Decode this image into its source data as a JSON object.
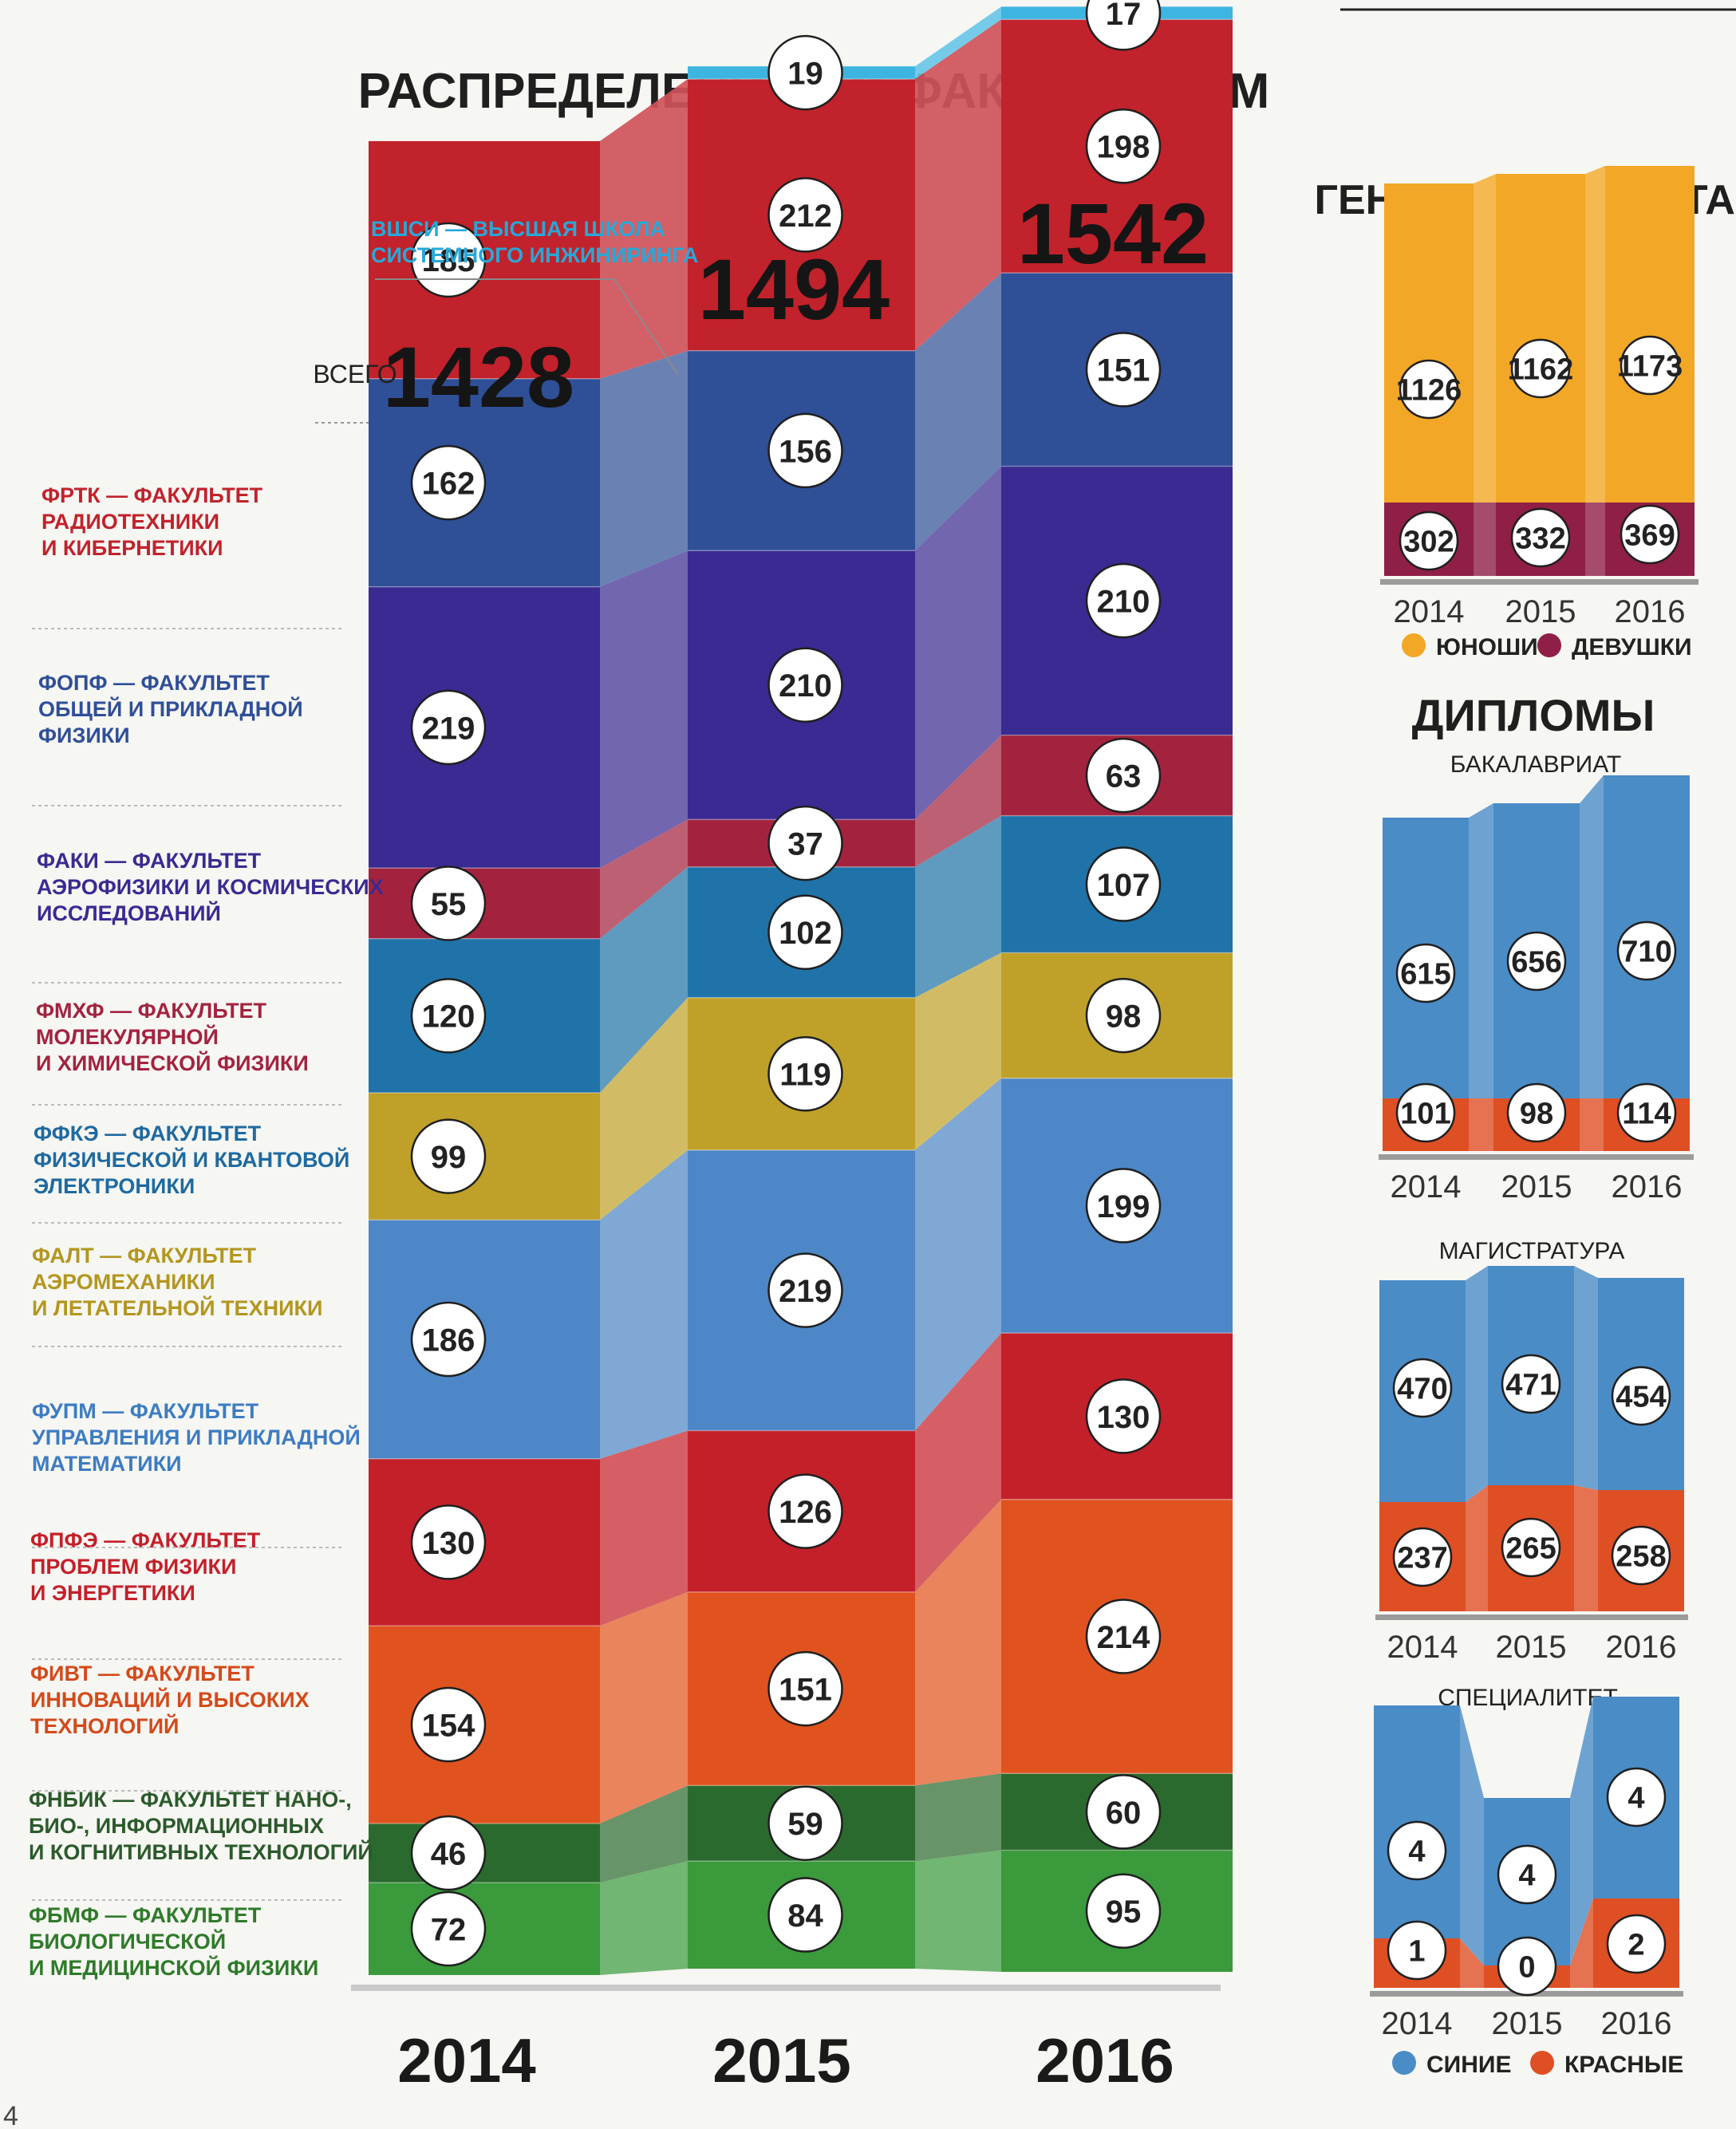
{
  "chart_data": [
    {
      "id": "faculties",
      "type": "stacked_bar",
      "title": "РАСПРЕДЕЛЕНИЕ ПО ФАКУЛЬТЕТАМ",
      "total_label": "ВСЕГО",
      "categories": [
        "2014",
        "2015",
        "2016"
      ],
      "totals": [
        1428,
        1494,
        1542
      ],
      "series": [
        {
          "short": "ФБМФ",
          "name": "ФБМФ — ФАКУЛЬТЕТ БИОЛОГИЧЕСКОЙ И МЕДИЦИНСКОЙ ФИЗИКИ",
          "lines": [
            "ФБМФ — ФАКУЛЬТЕТ",
            "БИОЛОГИЧЕСКОЙ",
            "И МЕДИЦИНСКОЙ ФИЗИКИ"
          ],
          "color": "#3a9a3c",
          "label_color": "#2f7a2a",
          "values": [
            72,
            84,
            95
          ]
        },
        {
          "short": "ФНБИК",
          "name": "ФНБИК — ФАКУЛЬТЕТ НАНО-, БИО-, ИНФОРМАЦИОННЫХ И КОГНИТИВНЫХ ТЕХНОЛОГИЙ",
          "lines": [
            "ФНБИК — ФАКУЛЬТЕТ НАНО-,",
            "БИО-, ИНФОРМАЦИОННЫХ",
            "И КОГНИТИВНЫХ ТЕХНОЛОГИЙ"
          ],
          "color": "#2b6a2e",
          "label_color": "#2b5a2b",
          "values": [
            46,
            59,
            60
          ]
        },
        {
          "short": "ФИВТ",
          "name": "ФИВТ — ФАКУЛЬТЕТ ИННОВАЦИЙ И ВЫСОКИХ ТЕХНОЛОГИЙ",
          "lines": [
            "ФИВТ — ФАКУЛЬТЕТ",
            "ИННОВАЦИЙ И ВЫСОКИХ",
            "ТЕХНОЛОГИЙ"
          ],
          "color": "#e0531f",
          "label_color": "#d44a1a",
          "values": [
            154,
            151,
            214
          ]
        },
        {
          "short": "ФПФЭ",
          "name": "ФПФЭ — ФАКУЛЬТЕТ ПРОБЛЕМ ФИЗИКИ И ЭНЕРГЕТИКИ",
          "lines": [
            "ФПФЭ — ФАКУЛЬТЕТ",
            "ПРОБЛЕМ ФИЗИКИ",
            "И ЭНЕРГЕТИКИ"
          ],
          "color": "#c4202a",
          "label_color": "#c4202a",
          "values": [
            130,
            126,
            130
          ]
        },
        {
          "short": "ФУПМ",
          "name": "ФУПМ — ФАКУЛЬТЕТ УПРАВЛЕНИЯ И ПРИКЛАДНОЙ МАТЕМАТИКИ",
          "lines": [
            "ФУПМ — ФАКУЛЬТЕТ",
            "УПРАВЛЕНИЯ И ПРИКЛАДНОЙ",
            "МАТЕМАТИКИ"
          ],
          "color": "#4d87c7",
          "label_color": "#3d7cc2",
          "values": [
            186,
            219,
            199
          ]
        },
        {
          "short": "ФАЛТ",
          "name": "ФАЛТ — ФАКУЛЬТЕТ АЭРОМЕХАНИКИ И ЛЕТАТЕЛЬНОЙ ТЕХНИКИ",
          "lines": [
            "ФАЛТ — ФАКУЛЬТЕТ",
            "АЭРОМЕХАНИКИ",
            "И ЛЕТАТЕЛЬНОЙ ТЕХНИКИ"
          ],
          "color": "#bfa12a",
          "label_color": "#b3961f",
          "values": [
            99,
            119,
            98
          ]
        },
        {
          "short": "ФФКЭ",
          "name": "ФФКЭ — ФАКУЛЬТЕТ ФИЗИЧЕСКОЙ И КВАНТОВОЙ ЭЛЕКТРОНИКИ",
          "lines": [
            "ФФКЭ —  ФАКУЛЬТЕТ",
            "ФИЗИЧЕСКОЙ И КВАНТОВОЙ",
            "ЭЛЕКТРОНИКИ"
          ],
          "color": "#1f73a8",
          "label_color": "#1f6aa0",
          "values": [
            120,
            102,
            107
          ]
        },
        {
          "short": "ФМХФ",
          "name": "ФМХФ — ФАКУЛЬТЕТ МОЛЕКУЛЯРНОЙ И ХИМИЧЕСКОЙ ФИЗИКИ",
          "lines": [
            "ФМХФ —  ФАКУЛЬТЕТ",
            "МОЛЕКУЛЯРНОЙ",
            "И ХИМИЧЕСКОЙ ФИЗИКИ"
          ],
          "color": "#a3233f",
          "label_color": "#a3233f",
          "values": [
            55,
            37,
            63
          ]
        },
        {
          "short": "ФАКИ",
          "name": "ФАКИ — ФАКУЛЬТЕТ АЭРОФИЗИКИ И КОСМИЧЕСКИХ ИССЛЕДОВАНИЙ",
          "lines": [
            "ФАКИ — ФАКУЛЬТЕТ",
            "АЭРОФИЗИКИ И КОСМИЧЕСКИХ",
            "ИССЛЕДОВАНИЙ"
          ],
          "color": "#3a2a91",
          "label_color": "#3a2a91",
          "values": [
            219,
            210,
            210
          ]
        },
        {
          "short": "ФОПФ",
          "name": "ФОПФ — ФАКУЛЬТЕТ ОБЩЕЙ И ПРИКЛАДНОЙ ФИЗИКИ",
          "lines": [
            "ФОПФ — ФАКУЛЬТЕТ",
            "ОБЩЕЙ И ПРИКЛАДНОЙ",
            "ФИЗИКИ"
          ],
          "color": "#2f4f97",
          "label_color": "#2f4f97",
          "values": [
            162,
            156,
            151
          ]
        },
        {
          "short": "ФРТК",
          "name": "ФРТК — ФАКУЛЬТЕТ РАДИОТЕХНИКИ И КИБЕРНЕТИКИ",
          "lines": [
            "ФРТК — ФАКУЛЬТЕТ",
            "РАДИОТЕХНИКИ",
            "И КИБЕРНЕТИКИ"
          ],
          "color": "#c1222b",
          "label_color": "#c1222b",
          "values": [
            185,
            212,
            198
          ]
        },
        {
          "short": "ВШСИ",
          "name": "ВШСИ — ВЫСШАЯ ШКОЛА СИСТЕМНОГО ИНЖИНИРИНГА",
          "lines": [
            "ВШСИ — ВЫСШАЯ ШКОЛА",
            "СИСТЕМНОГО ИНЖИНИРИНГА"
          ],
          "color": "#3db5e0",
          "label_color": "#28a8d8",
          "values": [
            null,
            19,
            17
          ]
        }
      ]
    },
    {
      "id": "gender",
      "type": "stacked_bar",
      "title": "ГЕНДЕРНЫЙ СОСТАВ",
      "categories": [
        "2014",
        "2015",
        "2016"
      ],
      "series": [
        {
          "name": "ДЕВУШКИ",
          "color": "#8f1f47",
          "values": [
            302,
            332,
            369
          ]
        },
        {
          "name": "ЮНОШИ",
          "color": "#f2a726",
          "values": [
            1126,
            1162,
            1173
          ]
        }
      ]
    },
    {
      "id": "bachelor",
      "type": "stacked_bar",
      "group_title": "ДИПЛОМЫ",
      "title": "БАКАЛАВРИАТ",
      "categories": [
        "2014",
        "2015",
        "2016"
      ],
      "series": [
        {
          "name": "КРАСНЫЕ",
          "color": "#de4f24",
          "values": [
            101,
            98,
            114
          ]
        },
        {
          "name": "СИНИЕ",
          "color": "#4a8cc6",
          "values": [
            615,
            656,
            710
          ]
        }
      ]
    },
    {
      "id": "master",
      "type": "stacked_bar",
      "title": "МАГИСТРАТУРА",
      "categories": [
        "2014",
        "2015",
        "2016"
      ],
      "series": [
        {
          "name": "КРАСНЫЕ",
          "color": "#de4f24",
          "values": [
            237,
            265,
            258
          ]
        },
        {
          "name": "СИНИЕ",
          "color": "#4a8cc6",
          "values": [
            470,
            471,
            454
          ]
        }
      ]
    },
    {
      "id": "specialist",
      "type": "stacked_bar",
      "title": "СПЕЦИАЛИТЕТ",
      "categories": [
        "2014",
        "2015",
        "2016"
      ],
      "series": [
        {
          "name": "КРАСНЫЕ",
          "color": "#de4f24",
          "values": [
            1,
            0,
            2
          ]
        },
        {
          "name": "СИНИЕ",
          "color": "#4a8cc6",
          "values": [
            4,
            4,
            4
          ]
        }
      ]
    }
  ],
  "legends": {
    "gender": [
      {
        "label": "ЮНОШИ",
        "color": "#f2a726"
      },
      {
        "label": "ДЕВУШКИ",
        "color": "#8f1f47"
      }
    ],
    "diplomas": [
      {
        "label": "СИНИЕ",
        "color": "#4a8cc6"
      },
      {
        "label": "КРАСНЫЕ",
        "color": "#de4f24"
      }
    ]
  },
  "page_number": "4"
}
